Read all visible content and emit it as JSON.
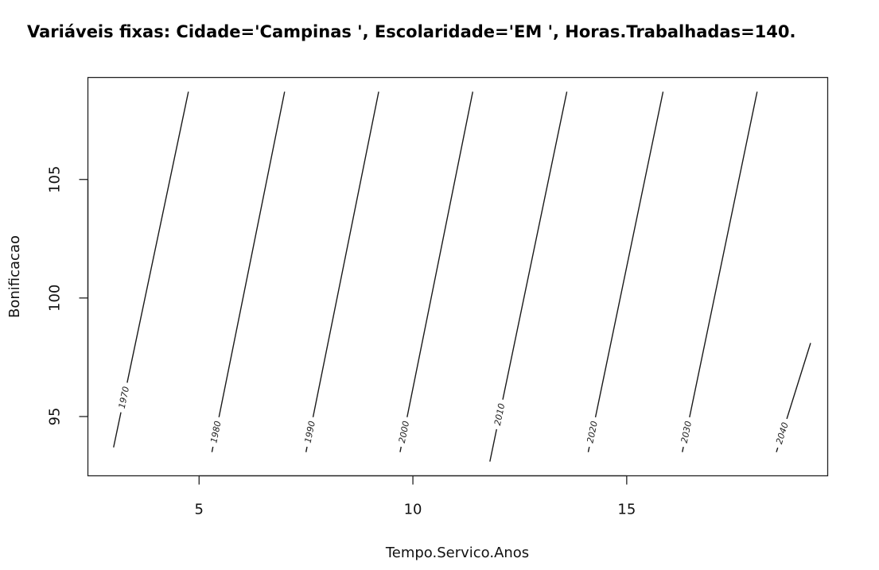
{
  "chart_data": {
    "type": "line",
    "title": "Variáveis fixas: Cidade='Campinas ', Escolaridade='EM ', Horas.Trabalhadas=140.",
    "xlabel": "Tempo.Servico.Anos",
    "ylabel": "Bonificacao",
    "xlim": [
      2.4,
      19.7
    ],
    "ylim": [
      92.5,
      109.3
    ],
    "x_ticks": [
      5,
      10,
      15
    ],
    "y_ticks": [
      95,
      100,
      105
    ],
    "grid": false,
    "legend": "none",
    "line_color": "#1a1a1a",
    "series": [
      {
        "label": "1970",
        "points": [
          [
            3.0,
            93.7
          ],
          [
            4.75,
            108.7
          ]
        ],
        "label_at": [
          3.25,
          95.8
        ]
      },
      {
        "label": "1980",
        "points": [
          [
            5.3,
            93.5
          ],
          [
            7.0,
            108.7
          ]
        ],
        "label_at": [
          5.25,
          94.4
        ]
      },
      {
        "label": "1990",
        "points": [
          [
            7.5,
            93.5
          ],
          [
            9.2,
            108.7
          ]
        ],
        "label_at": [
          7.45,
          94.4
        ]
      },
      {
        "label": "2000",
        "points": [
          [
            9.7,
            93.5
          ],
          [
            11.4,
            108.7
          ]
        ],
        "label_at": [
          9.65,
          94.4
        ]
      },
      {
        "label": "2010",
        "points": [
          [
            11.8,
            93.1
          ],
          [
            13.6,
            108.7
          ]
        ],
        "label_at": [
          12.0,
          95.1
        ]
      },
      {
        "label": "2020",
        "points": [
          [
            14.1,
            93.5
          ],
          [
            15.85,
            108.7
          ]
        ],
        "label_at": [
          14.05,
          94.4
        ]
      },
      {
        "label": "2030",
        "points": [
          [
            16.3,
            93.5
          ],
          [
            18.05,
            108.7
          ]
        ],
        "label_at": [
          16.25,
          94.4
        ]
      },
      {
        "label": "2040",
        "points": [
          [
            18.5,
            93.5
          ],
          [
            19.3,
            98.1
          ]
        ],
        "label_at": [
          18.45,
          94.4
        ]
      }
    ]
  }
}
